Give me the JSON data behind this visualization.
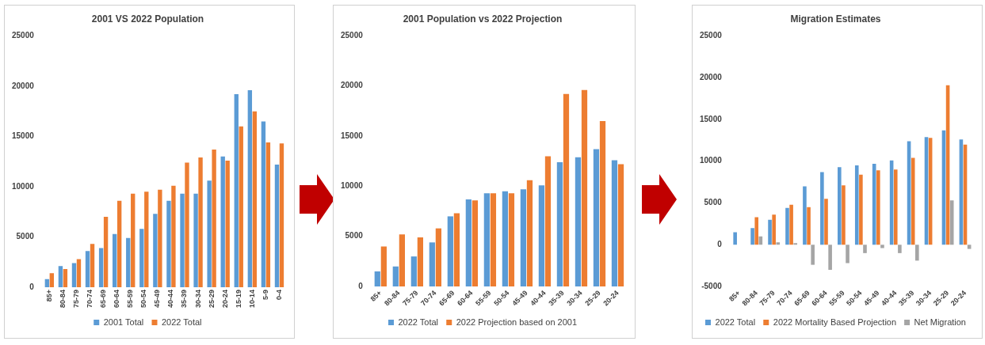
{
  "chart_data": [
    {
      "type": "bar",
      "title": "2001 VS 2022 Population",
      "categories": [
        "85+",
        "80-84",
        "75-79",
        "70-74",
        "65-69",
        "60-64",
        "55-59",
        "50-54",
        "45-49",
        "40-44",
        "35-39",
        "30-34",
        "25-29",
        "20-24",
        "15-19",
        "10-14",
        "5-9",
        "0-4"
      ],
      "series": [
        {
          "name": "2001 Total",
          "color": "#5b9bd5",
          "values": [
            800,
            2100,
            2400,
            3600,
            3900,
            5300,
            4900,
            5800,
            7300,
            8600,
            9300,
            9300,
            10600,
            13000,
            19200,
            19600,
            16500,
            12200
          ]
        },
        {
          "name": "2022 Total",
          "color": "#ed7d31",
          "values": [
            1400,
            1800,
            2800,
            4300,
            7000,
            8600,
            9300,
            9500,
            9700,
            10100,
            12400,
            12900,
            13700,
            12600,
            16000,
            17500,
            14400,
            14300
          ]
        }
      ],
      "ylim": [
        0,
        25000
      ],
      "yticks": [
        0,
        5000,
        10000,
        15000,
        20000,
        25000
      ],
      "grid": false,
      "legend": "bottom"
    },
    {
      "type": "bar",
      "title": "2001 Population vs 2022 Projection",
      "categories": [
        "85+",
        "80-84",
        "75-79",
        "70-74",
        "65-69",
        "60-64",
        "55-59",
        "50-54",
        "45-49",
        "40-44",
        "35-39",
        "30-34",
        "25-29",
        "20-24"
      ],
      "series": [
        {
          "name": "2022 Total",
          "color": "#5b9bd5",
          "values": [
            1500,
            2000,
            3000,
            4400,
            7000,
            8700,
            9300,
            9500,
            9700,
            10100,
            12400,
            12900,
            13700,
            12600
          ]
        },
        {
          "name": "2022 Projection based on 2001",
          "color": "#ed7d31",
          "values": [
            4000,
            5200,
            4900,
            5800,
            7300,
            8600,
            9300,
            9300,
            10600,
            13000,
            19200,
            19600,
            16500,
            12200
          ]
        }
      ],
      "ylim": [
        0,
        25000
      ],
      "yticks": [
        0,
        5000,
        10000,
        15000,
        20000,
        25000
      ],
      "grid": false,
      "legend": "bottom"
    },
    {
      "type": "bar",
      "title": "Migration Estimates",
      "categories": [
        "85+",
        "80-84",
        "75-79",
        "70-74",
        "65-69",
        "60-64",
        "55-59",
        "50-54",
        "45-49",
        "40-44",
        "35-39",
        "30-34",
        "25-29",
        "20-24"
      ],
      "series": [
        {
          "name": "2022 Total",
          "color": "#5b9bd5",
          "values": [
            1500,
            2000,
            3000,
            4400,
            7000,
            8700,
            9300,
            9500,
            9700,
            10100,
            12400,
            12900,
            13700,
            12600
          ]
        },
        {
          "name": "2022 Mortality Based Projection",
          "color": "#ed7d31",
          "values": [
            null,
            3300,
            3600,
            4800,
            4500,
            5500,
            7100,
            8400,
            8900,
            9000,
            10400,
            12800,
            19100,
            12000
          ]
        },
        {
          "name": "Net Migration",
          "color": "#a5a5a5",
          "values": [
            null,
            1000,
            300,
            200,
            -2400,
            -3000,
            -2200,
            -1000,
            -400,
            -1000,
            -1900,
            null,
            5300,
            -500
          ]
        }
      ],
      "ylim": [
        -5000,
        25000
      ],
      "yticks": [
        -5000,
        0,
        5000,
        10000,
        15000,
        20000,
        25000
      ],
      "grid": false,
      "legend": "bottom"
    }
  ]
}
